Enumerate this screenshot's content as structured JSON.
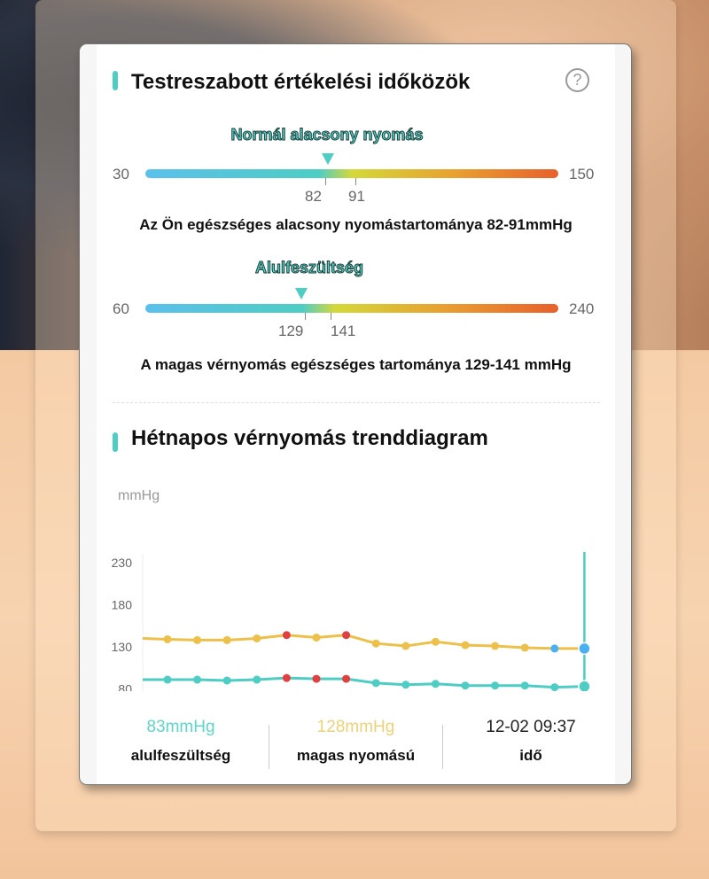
{
  "ranges_section": {
    "title": "Testreszabott értékelési időközök",
    "help_icon": "question-circle-icon",
    "gauges": [
      {
        "label": "Normál alacsony nyomás",
        "min": "30",
        "max": "150",
        "low": "82",
        "high": "91",
        "marker_value": 83,
        "description": "Az Ön egészséges alacsony nyomástartománya 82-91mmHg"
      },
      {
        "label": "Alulfeszültség",
        "min": "60",
        "max": "240",
        "low": "129",
        "high": "141",
        "marker_value": 128,
        "description": "A magas vérnyomás egészséges tartománya 129-141 mmHg"
      }
    ]
  },
  "trend_section": {
    "title": "Hétnapos vérnyomás trenddiagram"
  },
  "chart_data": {
    "type": "line",
    "ylabel": "mmHg",
    "ylim": [
      30,
      230
    ],
    "yticks": [
      "230",
      "180",
      "130",
      "80",
      "30"
    ],
    "grid": false,
    "series": [
      {
        "key": "systolic",
        "color": "#ecc04a",
        "start": 140,
        "values": [
          139,
          138,
          138,
          140,
          144,
          141,
          144,
          134,
          131,
          136,
          132,
          131,
          129,
          128,
          128
        ],
        "highlight": {
          "4": "#e04040",
          "6": "#e04040",
          "13": "#4ab0f0",
          "14": "#4ab0f0"
        }
      },
      {
        "key": "diastolic",
        "color": "#4ecdc4",
        "start": 91,
        "values": [
          91,
          91,
          90,
          91,
          93,
          92,
          92,
          87,
          85,
          86,
          84,
          84,
          84,
          82,
          83
        ],
        "highlight": {
          "4": "#e04040",
          "5": "#e04040",
          "6": "#e04040"
        }
      }
    ],
    "selected_index": 14
  },
  "footer": [
    {
      "value": "83mmHg",
      "label": "alulfeszültség",
      "color": "#5dd5c8"
    },
    {
      "value": "128mmHg",
      "label": "magas nyomású",
      "color": "#ecd27a"
    },
    {
      "value": "12-02 09:37",
      "label": "idő",
      "color": "#222"
    }
  ],
  "colors": {
    "accent": "#4ecdc4",
    "gauge_gradient": [
      "#5bc0eb",
      "#4ecdc4",
      "#d4d83a",
      "#e8a030",
      "#e8602c"
    ]
  }
}
